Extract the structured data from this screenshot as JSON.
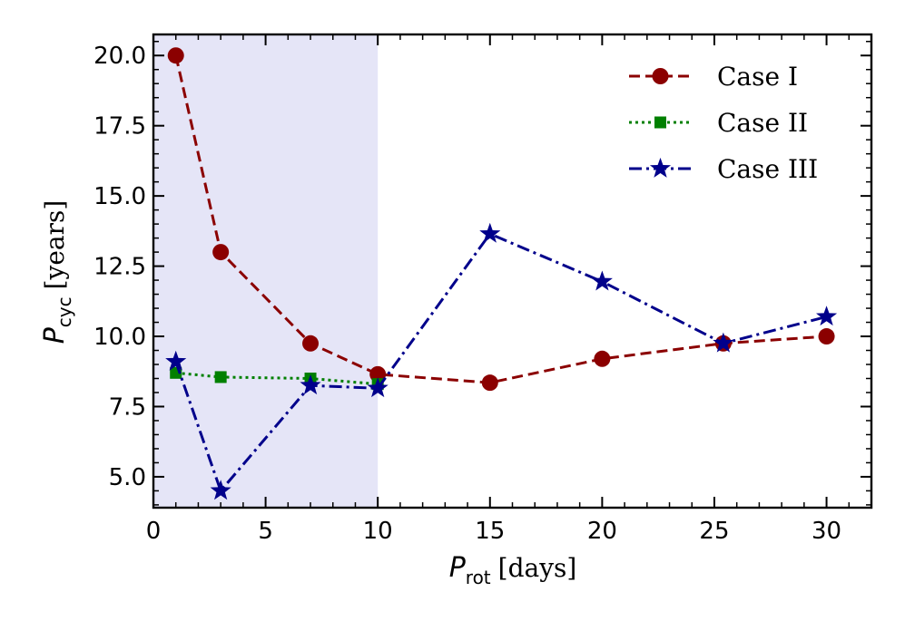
{
  "chart_data": {
    "type": "line",
    "xlim": [
      0,
      32
    ],
    "ylim": [
      3.9,
      20.75
    ],
    "xticks": [
      0,
      5,
      10,
      15,
      20,
      25,
      30
    ],
    "xtick_labels": [
      "0",
      "5",
      "10",
      "15",
      "20",
      "25",
      "30"
    ],
    "yticks": [
      5.0,
      7.5,
      10.0,
      12.5,
      15.0,
      17.5,
      20.0
    ],
    "ytick_labels": [
      "5.0",
      "7.5",
      "10.0",
      "12.5",
      "15.0",
      "17.5",
      "20.0"
    ],
    "xlabel": {
      "symbol": "P",
      "subscript": "rot",
      "unit": "[days]"
    },
    "ylabel": {
      "symbol": "P",
      "subscript": "cyc",
      "unit": "[years]"
    },
    "shaded_region": {
      "x_from": 0,
      "x_to": 10,
      "color": "#e5e5f7"
    },
    "legend_position": "top-right",
    "series": [
      {
        "name": "Case I",
        "color": "#8b0000",
        "linestyle": "dashed",
        "marker": "circle",
        "x": [
          1,
          3,
          7,
          10,
          15,
          20,
          25.4,
          30
        ],
        "y": [
          20.0,
          13.0,
          9.75,
          8.65,
          8.35,
          9.2,
          9.75,
          10.0
        ]
      },
      {
        "name": "Case II",
        "color": "#008000",
        "linestyle": "dotted",
        "marker": "square",
        "x": [
          1,
          3,
          7,
          10
        ],
        "y": [
          8.7,
          8.55,
          8.5,
          8.3
        ]
      },
      {
        "name": "Case III",
        "color": "#00008b",
        "linestyle": "dashdot",
        "marker": "star",
        "x": [
          1,
          3,
          7,
          10,
          15,
          20,
          25.4,
          30
        ],
        "y": [
          9.1,
          4.5,
          8.25,
          8.15,
          13.65,
          11.95,
          9.75,
          10.7
        ]
      }
    ]
  }
}
